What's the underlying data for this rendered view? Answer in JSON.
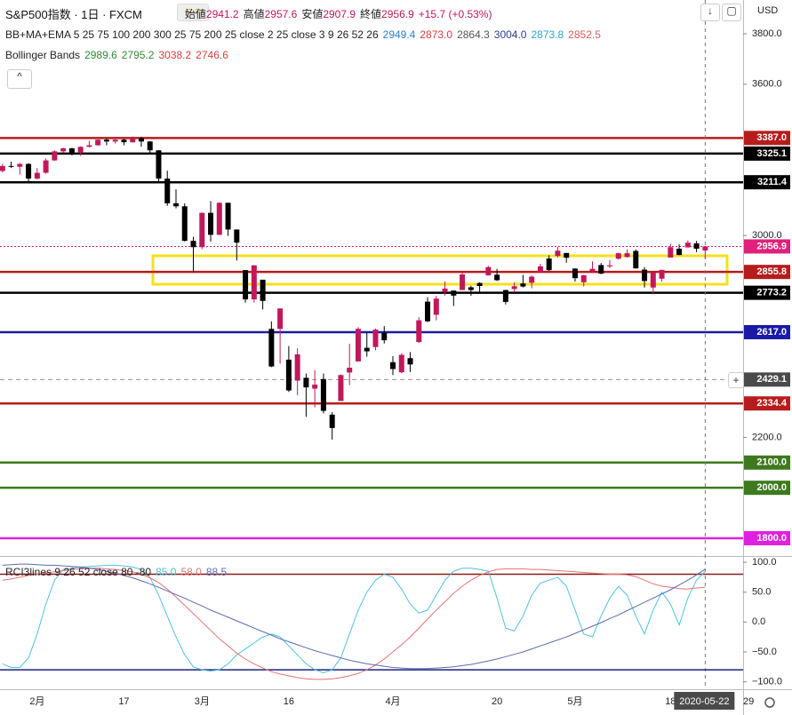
{
  "header": {
    "symbol": "S&P500指数 · 1日 · FXCM",
    "ohlc_labels": [
      "始値",
      "高値",
      "安値",
      "終値"
    ],
    "change": "+15.7 (+0.53%)",
    "currency": "USD"
  },
  "indicators": [
    {
      "name": "BB+MA+EMA 5 25 75 100 200 300 25 75 200 25 close 2 25 close 3 9 26 52 26",
      "values": [
        {
          "text": "2949.4",
          "color": "#2f7fd0"
        },
        {
          "text": "2873.0",
          "color": "#d84040"
        },
        {
          "text": "2864.3",
          "color": "#555555"
        },
        {
          "text": "3004.0",
          "color": "#2a3f8f"
        },
        {
          "text": "2873.8",
          "color": "#26a6c9"
        },
        {
          "text": "2852.5",
          "color": "#e05a5a"
        }
      ]
    },
    {
      "name": "Bollinger Bands",
      "values": [
        {
          "text": "2989.6",
          "color": "#2e8b2e"
        },
        {
          "text": "2795.2",
          "color": "#2e8b2e"
        },
        {
          "text": "3038.2",
          "color": "#d84040"
        },
        {
          "text": "2746.6",
          "color": "#d84040"
        }
      ]
    }
  ],
  "chart_data": [
    {
      "type": "candlestick",
      "categories": [
        null,
        null,
        null,
        null,
        "2月",
        null,
        null,
        null,
        null,
        null,
        null,
        null,
        null,
        null,
        "17",
        null,
        null,
        null,
        null,
        null,
        null,
        null,
        null,
        "3月",
        null,
        null,
        null,
        null,
        null,
        null,
        null,
        null,
        null,
        "16",
        null,
        null,
        null,
        null,
        null,
        null,
        null,
        null,
        null,
        null,
        null,
        "4月",
        null,
        null,
        null,
        null,
        null,
        null,
        null,
        null,
        null,
        null,
        null,
        "20",
        null,
        null,
        null,
        null,
        null,
        null,
        null,
        null,
        "5月",
        null,
        null,
        null,
        null,
        null,
        null,
        null,
        null,
        null,
        null,
        "18",
        null,
        null,
        null,
        "2020-05-22",
        null,
        null,
        null,
        null,
        "29"
      ],
      "open": [
        3256,
        3276,
        3273,
        3284,
        3226,
        3249,
        3298,
        3334,
        3346,
        3328,
        3352,
        3358,
        3380,
        3373,
        3380,
        3370,
        3386,
        3373,
        3338,
        3226,
        3128,
        3116,
        2979,
        2954,
        3090,
        3003,
        3130,
        3024,
        2863,
        2747,
        2825,
        2630,
        2630,
        2508,
        2425,
        2436,
        2393,
        2431,
        2290,
        2344,
        2457,
        2501,
        2555,
        2558,
        2614,
        2498,
        2458,
        2514,
        2578,
        2738,
        2686,
        2776,
        2782,
        2784,
        2795,
        2812,
        2842,
        2845,
        2784,
        2788,
        2810,
        2813,
        2854,
        2909,
        2919,
        2931,
        2869,
        2815,
        2860,
        2883,
        2878,
        2908,
        2915,
        2939,
        2865,
        2794,
        2829,
        2913,
        2948,
        2953,
        2969,
        2941.2,
        null,
        null,
        null,
        null,
        null
      ],
      "high": [
        3285,
        3293,
        3288,
        3287,
        3268,
        3306,
        3338,
        3348,
        3348,
        3354,
        3376,
        3381,
        3385,
        3382,
        3384,
        3393,
        3392,
        3375,
        3338,
        3257,
        3183,
        3128,
        2995,
        3092,
        3137,
        3132,
        3130,
        3024,
        2863,
        2883,
        2825,
        2660,
        2711,
        2562,
        2553,
        2453,
        2466,
        2453,
        2300,
        2449,
        2571,
        2637,
        2615,
        2631,
        2641,
        2522,
        2533,
        2538,
        2676,
        2756,
        2761,
        2818,
        2782,
        2851,
        2801,
        2815,
        2880,
        2868,
        2785,
        2815,
        2844,
        2842,
        2888,
        2922,
        2955,
        2931,
        2870,
        2844,
        2898,
        2891,
        2902,
        2932,
        2945,
        2945,
        2875,
        2853,
        2865,
        2968,
        2965,
        2981,
        2979,
        2957.6,
        null,
        null,
        null,
        null,
        null
      ],
      "low": [
        3250,
        3268,
        3242,
        3214,
        3222,
        3245,
        3296,
        3330,
        3318,
        3316,
        3350,
        3356,
        3358,
        3365,
        3358,
        3368,
        3352,
        3328,
        3214,
        3118,
        3108,
        2977,
        2855,
        2946,
        2976,
        3002,
        2999,
        2901,
        2734,
        2734,
        2707,
        2478,
        2492,
        2380,
        2367,
        2281,
        2319,
        2295,
        2191,
        2344,
        2407,
        2500,
        2520,
        2545,
        2572,
        2447,
        2455,
        2459,
        2574,
        2657,
        2664,
        2762,
        2721,
        2784,
        2761,
        2775,
        2842,
        2820,
        2727,
        2775,
        2794,
        2791,
        2852,
        2860,
        2913,
        2892,
        2817,
        2798,
        2853,
        2847,
        2871,
        2905,
        2912,
        2869,
        2794,
        2767,
        2817,
        2913,
        2922,
        2953,
        2934,
        2907.9,
        null,
        null,
        null,
        null,
        null
      ],
      "close": [
        3276,
        3273,
        3284,
        3226,
        3249,
        3298,
        3334,
        3346,
        3328,
        3352,
        3358,
        3380,
        3373,
        3380,
        3370,
        3386,
        3373,
        3338,
        3226,
        3128,
        3116,
        2979,
        2954,
        3090,
        3003,
        3130,
        3024,
        2972,
        2747,
        2882,
        2741,
        2481,
        2711,
        2386,
        2529,
        2398,
        2409,
        2305,
        2237,
        2447,
        2476,
        2630,
        2541,
        2627,
        2585,
        2471,
        2527,
        2489,
        2664,
        2660,
        2750,
        2790,
        2762,
        2846,
        2784,
        2800,
        2875,
        2823,
        2737,
        2799,
        2798,
        2837,
        2878,
        2863,
        2940,
        2912,
        2831,
        2843,
        2868,
        2849,
        2882,
        2930,
        2930,
        2870,
        2820,
        2853,
        2864,
        2954,
        2923,
        2972,
        2948,
        2956.9,
        null,
        null,
        null,
        null,
        null
      ],
      "up_color": "#c2185b",
      "down_color": "#000000",
      "ylim": [
        1733,
        3934
      ],
      "yticks": [
        {
          "value": 3800,
          "label": "3800.0"
        },
        {
          "value": 3600,
          "label": "3600.0"
        },
        {
          "value": 3000,
          "label": "3000.0"
        },
        {
          "value": 2200,
          "label": "2200.0"
        }
      ],
      "levels": [
        {
          "value": 3387,
          "label": "3387.0",
          "color": "#b71c1c",
          "style": "solid"
        },
        {
          "value": 3325.1,
          "label": "3325.1",
          "color": "#000000",
          "style": "solid"
        },
        {
          "value": 3211.4,
          "label": "3211.4",
          "color": "#000000",
          "style": "solid"
        },
        {
          "value": 2956.9,
          "label": "2956.9",
          "color": "#e0207a",
          "style": "dotted"
        },
        {
          "value": 2855.8,
          "label": "2855.8",
          "color": "#b71c1c",
          "style": "solid"
        },
        {
          "value": 2773.2,
          "label": "2773.2",
          "color": "#000000",
          "style": "solid"
        },
        {
          "value": 2617,
          "label": "2617.0",
          "color": "#1a1aa6",
          "style": "solid"
        },
        {
          "value": 2429.1,
          "label": "2429.1",
          "color": "#4a4a4a",
          "style": "dashed"
        },
        {
          "value": 2334.4,
          "label": "2334.4",
          "color": "#b71c1c",
          "style": "solid"
        },
        {
          "value": 2100,
          "label": "2100.0",
          "color": "#3d7a1e",
          "style": "solid"
        },
        {
          "value": 2000,
          "label": "2000.0",
          "color": "#3d7a1e",
          "style": "solid"
        },
        {
          "value": 1800,
          "label": "1800.0",
          "color": "#e020e0",
          "style": "solid"
        }
      ]
    },
    {
      "type": "line",
      "title": "RCI3lines 9 26 52 close 80 -80",
      "ylim": [
        -111,
        109
      ],
      "yticks": [
        {
          "value": 100,
          "label": "100.0"
        },
        {
          "value": 50,
          "label": "50.0"
        },
        {
          "value": 0,
          "label": "0.0"
        },
        {
          "value": -50,
          "label": "−50.0"
        },
        {
          "value": -100,
          "label": "−100.0"
        }
      ],
      "levels": [
        {
          "value": 80,
          "color": "#8b1a1a"
        },
        {
          "value": -80,
          "color": "#1a237e"
        }
      ],
      "series": [
        {
          "color": "#4fc3dc",
          "value_label": "85.0",
          "values": [
            -70,
            -76,
            -76,
            -60,
            -20,
            30,
            70,
            88,
            90,
            92,
            93,
            94,
            95,
            95,
            94,
            92,
            88,
            75,
            45,
            10,
            -25,
            -55,
            -75,
            -80,
            -82,
            -80,
            -70,
            -55,
            -45,
            -35,
            -25,
            -20,
            -25,
            -40,
            -55,
            -70,
            -80,
            -85,
            -80,
            -60,
            -20,
            20,
            50,
            70,
            80,
            75,
            55,
            30,
            15,
            20,
            45,
            70,
            85,
            90,
            90,
            88,
            85,
            40,
            -10,
            -15,
            10,
            45,
            65,
            70,
            75,
            60,
            20,
            -20,
            -25,
            10,
            40,
            60,
            45,
            10,
            -20,
            20,
            50,
            30,
            -5,
            40,
            70,
            85,
            null,
            null,
            null,
            null,
            null
          ]
        },
        {
          "color": "#e57373",
          "value_label": "58.0",
          "values": [
            70,
            72,
            75,
            78,
            80,
            82,
            84,
            86,
            88,
            89,
            90,
            90,
            89,
            88,
            86,
            84,
            80,
            74,
            66,
            55,
            42,
            28,
            14,
            0,
            -14,
            -28,
            -40,
            -52,
            -62,
            -70,
            -77,
            -83,
            -87,
            -90,
            -93,
            -95,
            -96,
            -96,
            -95,
            -93,
            -90,
            -86,
            -80,
            -72,
            -62,
            -50,
            -38,
            -25,
            -10,
            5,
            20,
            34,
            48,
            60,
            70,
            78,
            84,
            88,
            89,
            89,
            89,
            88,
            88,
            87,
            86,
            85,
            84,
            83,
            82,
            81,
            80,
            80,
            79,
            76,
            70,
            64,
            60,
            58,
            56,
            55,
            57,
            58,
            null,
            null,
            null,
            null,
            null
          ]
        },
        {
          "color": "#5c6bb0",
          "value_label": "88.5",
          "values": [
            95,
            96,
            97,
            97,
            96,
            95,
            95,
            94,
            93,
            92,
            90,
            88,
            85,
            82,
            78,
            74,
            69,
            64,
            58,
            52,
            46,
            40,
            33,
            27,
            20,
            14,
            8,
            2,
            -4,
            -10,
            -16,
            -22,
            -28,
            -33,
            -38,
            -43,
            -48,
            -52,
            -56,
            -60,
            -64,
            -67,
            -70,
            -72,
            -74,
            -76,
            -77,
            -78,
            -78,
            -78,
            -77,
            -76,
            -75,
            -73,
            -71,
            -68,
            -65,
            -62,
            -58,
            -54,
            -50,
            -45,
            -40,
            -35,
            -30,
            -25,
            -19,
            -13,
            -7,
            -1,
            6,
            12,
            19,
            26,
            33,
            40,
            47,
            54,
            62,
            70,
            79,
            88.5,
            null,
            null,
            null,
            null,
            null
          ]
        }
      ]
    }
  ]
}
